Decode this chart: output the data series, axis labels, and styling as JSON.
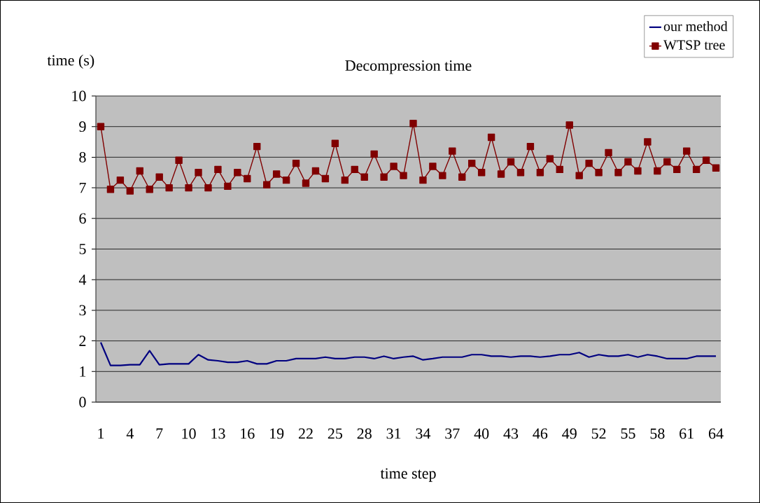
{
  "chart_data": {
    "type": "line",
    "title": "Decompression time",
    "xlabel": "time step",
    "ylabel": "time (s)",
    "categories": [
      "1",
      null,
      null,
      "4",
      null,
      null,
      "7",
      null,
      null,
      "10",
      null,
      null,
      "13",
      null,
      null,
      "16",
      null,
      null,
      "19",
      null,
      null,
      "22",
      null,
      null,
      "25",
      null,
      null,
      "28",
      null,
      null,
      "31",
      null,
      null,
      "34",
      null,
      null,
      "37",
      null,
      null,
      "40",
      null,
      null,
      "43",
      null,
      null,
      "46",
      null,
      null,
      "49",
      null,
      null,
      "52",
      null,
      null,
      "55",
      null,
      null,
      "58",
      null,
      null,
      "61",
      null,
      null,
      "64"
    ],
    "series": [
      {
        "name": "our method",
        "color": "#000080",
        "marker": "none",
        "values": [
          1.95,
          1.2,
          1.2,
          1.22,
          1.22,
          1.68,
          1.22,
          1.25,
          1.25,
          1.25,
          1.55,
          1.38,
          1.35,
          1.3,
          1.3,
          1.35,
          1.25,
          1.25,
          1.35,
          1.35,
          1.42,
          1.42,
          1.42,
          1.47,
          1.42,
          1.42,
          1.47,
          1.47,
          1.42,
          1.5,
          1.42,
          1.47,
          1.5,
          1.38,
          1.42,
          1.47,
          1.47,
          1.47,
          1.55,
          1.55,
          1.5,
          1.5,
          1.47,
          1.5,
          1.5,
          1.47,
          1.5,
          1.55,
          1.55,
          1.62,
          1.47,
          1.55,
          1.5,
          1.5,
          1.55,
          1.47,
          1.55,
          1.5,
          1.42,
          1.42,
          1.42,
          1.5,
          1.5,
          1.5
        ]
      },
      {
        "name": "WTSP tree",
        "color": "#800000",
        "marker": "square",
        "values": [
          9.0,
          6.95,
          7.25,
          6.9,
          7.55,
          6.95,
          7.35,
          7.0,
          7.9,
          7.0,
          7.5,
          7.0,
          7.6,
          7.05,
          7.5,
          7.3,
          8.35,
          7.1,
          7.45,
          7.25,
          7.8,
          7.15,
          7.55,
          7.3,
          8.45,
          7.25,
          7.6,
          7.35,
          8.1,
          7.35,
          7.7,
          7.4,
          9.1,
          7.25,
          7.7,
          7.4,
          8.2,
          7.35,
          7.8,
          7.5,
          8.65,
          7.45,
          7.85,
          7.5,
          8.35,
          7.5,
          7.95,
          7.6,
          9.05,
          7.4,
          7.8,
          7.5,
          8.15,
          7.5,
          7.85,
          7.55,
          8.5,
          7.55,
          7.85,
          7.6,
          8.2,
          7.6,
          7.9,
          7.65
        ]
      }
    ],
    "ylim": [
      0,
      10
    ],
    "yticks": [
      0,
      1,
      2,
      3,
      4,
      5,
      6,
      7,
      8,
      9,
      10
    ],
    "grid": "y",
    "legend": "top right",
    "line_style": "solid"
  }
}
